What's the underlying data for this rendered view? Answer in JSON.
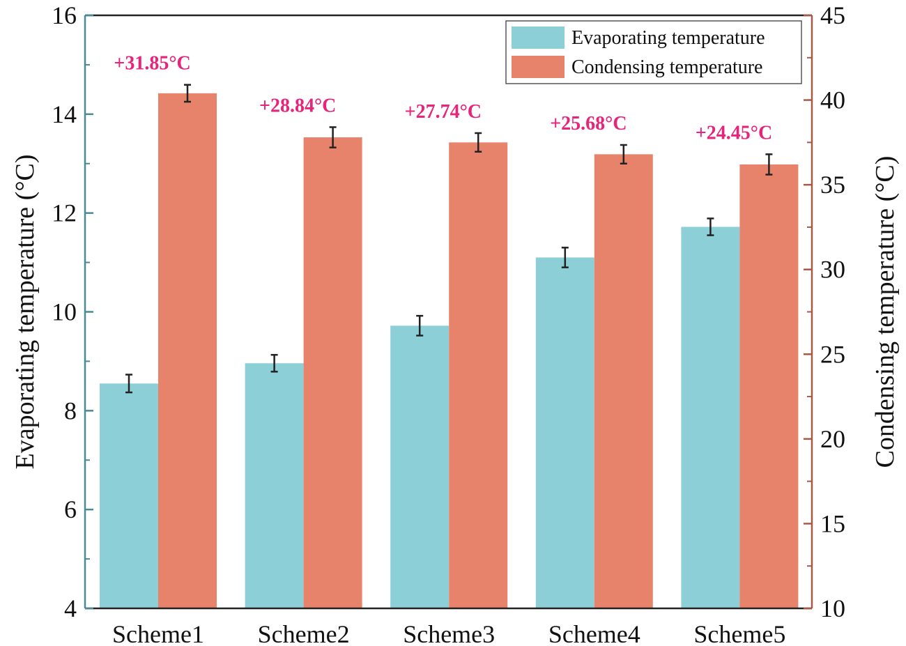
{
  "chart_data": {
    "type": "bar",
    "categories": [
      "Scheme1",
      "Scheme2",
      "Scheme3",
      "Scheme4",
      "Scheme5"
    ],
    "series": [
      {
        "name": "Evaporating temperature",
        "axis": "left",
        "color": "#8ccfd6",
        "values": [
          8.55,
          8.96,
          9.72,
          11.1,
          11.72
        ],
        "errors": [
          0.18,
          0.17,
          0.2,
          0.2,
          0.17
        ]
      },
      {
        "name": "Condensing temperature",
        "axis": "right",
        "color": "#e8836b",
        "values": [
          40.4,
          37.8,
          37.5,
          36.8,
          36.2
        ],
        "errors": [
          0.5,
          0.6,
          0.55,
          0.55,
          0.6
        ]
      }
    ],
    "annotations": [
      "+31.85°C",
      "+28.84°C",
      "+27.74°C",
      "+25.68°C",
      "+24.45°C"
    ],
    "annotation_color": "#e8237a",
    "ylabel_left": "Evaporating temperature (°C)",
    "ylabel_right": "Condensing temperature (°C)",
    "ylim_left": [
      4,
      16
    ],
    "ylim_right": [
      10,
      45
    ],
    "yticks_left": [
      "4",
      "6",
      "8",
      "10",
      "12",
      "14",
      "16"
    ],
    "yticks_right": [
      "10",
      "15",
      "20",
      "25",
      "30",
      "35",
      "40",
      "45"
    ],
    "legend_position": "top-right",
    "left_axis_color": "#4a8a96",
    "right_axis_color": "#a55a48"
  }
}
